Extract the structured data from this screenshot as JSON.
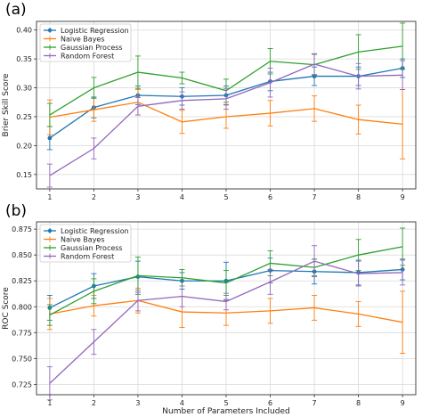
{
  "figure": {
    "xlabel": "Number of Parameters Included",
    "colors": {
      "Logistic Regression": "#1f77b4",
      "Naive Bayes": "#ff7f0e",
      "Gaussian Process": "#2ca02c",
      "Random Forest": "#9467bd"
    }
  },
  "chart_data": [
    {
      "panel_label": "(a)",
      "type": "line",
      "ylabel": "Brier Skill Score",
      "xlabel": "",
      "xlim": [
        0.7,
        9.3
      ],
      "ylim": [
        0.125,
        0.415
      ],
      "xticks": [
        "1",
        "2",
        "3",
        "4",
        "5",
        "6",
        "7",
        "8",
        "9"
      ],
      "yticks": [
        "0.15",
        "0.20",
        "0.25",
        "0.30",
        "0.35",
        "0.40"
      ],
      "grid": true,
      "legend_position": "top-left",
      "x": [
        1,
        2,
        3,
        4,
        5,
        6,
        7,
        8,
        9
      ],
      "series": [
        {
          "name": "Logistic Regression",
          "marker": "circle",
          "values": [
            0.213,
            0.266,
            0.287,
            0.285,
            0.287,
            0.311,
            0.32,
            0.32,
            0.334
          ],
          "err": [
            0.02,
            0.018,
            0.016,
            0.015,
            0.016,
            0.016,
            0.016,
            0.016,
            0.016
          ]
        },
        {
          "name": "Naive Bayes",
          "marker": "none",
          "values": [
            0.249,
            0.262,
            0.275,
            0.241,
            0.25,
            0.256,
            0.264,
            0.245,
            0.237
          ],
          "err": [
            0.03,
            0.02,
            0.022,
            0.02,
            0.02,
            0.022,
            0.022,
            0.025,
            0.06
          ]
        },
        {
          "name": "Gaussian Process",
          "marker": "none",
          "values": [
            0.253,
            0.3,
            0.327,
            0.317,
            0.295,
            0.346,
            0.34,
            0.362,
            0.372
          ],
          "err": [
            0.02,
            0.018,
            0.028,
            0.01,
            0.02,
            0.022,
            0.018,
            0.03,
            0.04
          ]
        },
        {
          "name": "Random Forest",
          "marker": "none",
          "values": [
            0.148,
            0.195,
            0.268,
            0.278,
            0.281,
            0.309,
            0.341,
            0.32,
            0.322
          ],
          "err": [
            0.02,
            0.018,
            0.015,
            0.015,
            0.018,
            0.025,
            0.018,
            0.022,
            0.025
          ]
        }
      ]
    },
    {
      "panel_label": "(b)",
      "type": "line",
      "ylabel": "ROC Score",
      "xlabel": "Number of Parameters Included",
      "xlim": [
        0.7,
        9.3
      ],
      "ylim": [
        0.715,
        0.882
      ],
      "xticks": [
        "1",
        "2",
        "3",
        "4",
        "5",
        "6",
        "7",
        "8",
        "9"
      ],
      "yticks": [
        "0.725",
        "0.750",
        "0.775",
        "0.800",
        "0.825",
        "0.850",
        "0.875"
      ],
      "grid": true,
      "legend_position": "top-left",
      "x": [
        1,
        2,
        3,
        4,
        5,
        6,
        7,
        8,
        9
      ],
      "series": [
        {
          "name": "Logistic Regression",
          "marker": "circle",
          "values": [
            0.799,
            0.82,
            0.829,
            0.825,
            0.825,
            0.835,
            0.834,
            0.833,
            0.836
          ],
          "err": [
            0.012,
            0.012,
            0.015,
            0.008,
            0.018,
            0.012,
            0.012,
            0.012,
            0.01
          ]
        },
        {
          "name": "Naive Bayes",
          "marker": "none",
          "values": [
            0.793,
            0.801,
            0.806,
            0.795,
            0.794,
            0.796,
            0.799,
            0.793,
            0.785
          ],
          "err": [
            0.015,
            0.01,
            0.012,
            0.015,
            0.012,
            0.012,
            0.012,
            0.012,
            0.03
          ]
        },
        {
          "name": "Gaussian Process",
          "marker": "none",
          "values": [
            0.792,
            0.815,
            0.83,
            0.828,
            0.823,
            0.842,
            0.838,
            0.85,
            0.858
          ],
          "err": [
            0.01,
            0.012,
            0.018,
            0.008,
            0.012,
            0.012,
            0.008,
            0.015,
            0.018
          ]
        },
        {
          "name": "Random Forest",
          "marker": "none",
          "values": [
            0.726,
            0.766,
            0.806,
            0.81,
            0.805,
            0.824,
            0.844,
            0.832,
            0.833
          ],
          "err": [
            0.016,
            0.012,
            0.01,
            0.01,
            0.008,
            0.012,
            0.015,
            0.012,
            0.012
          ]
        }
      ]
    }
  ]
}
